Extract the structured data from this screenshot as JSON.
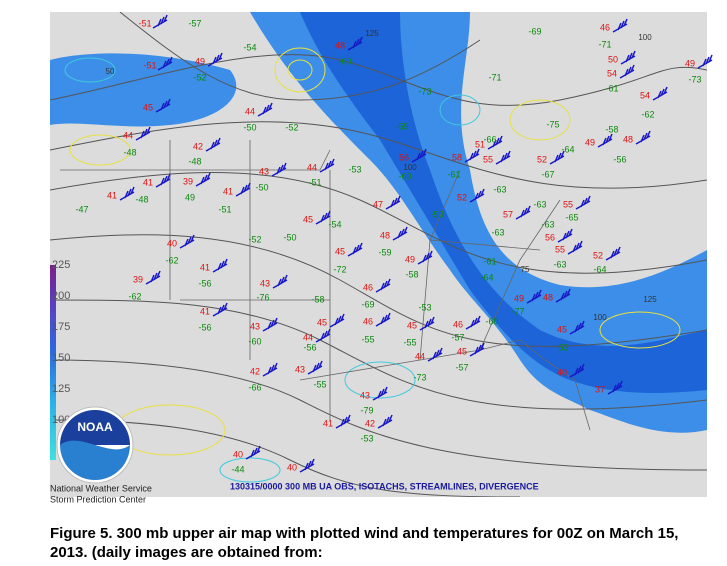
{
  "map": {
    "product_title": "130315/0000 300 MB UA OBS, ISOTACHS, STREAMLINES, DIVERGENCE",
    "agency": "National Weather Service",
    "center": "Storm Prediction Center",
    "logo_text": "NOAA",
    "scale_labels": [
      "225",
      "200",
      "175",
      "150",
      "125",
      "100"
    ],
    "isotach_labels": [
      "100",
      "125",
      "100",
      "75",
      "50",
      "100",
      "125"
    ],
    "temperatures": [
      "-51",
      "-51",
      "49",
      "45",
      "44",
      "42",
      "41",
      "39",
      "41",
      "41",
      "44",
      "43",
      "40",
      "41",
      "39",
      "43",
      "41",
      "43",
      "42",
      "40",
      "40",
      "44",
      "45",
      "45",
      "48",
      "47",
      "49",
      "46",
      "46",
      "45",
      "44",
      "43",
      "41",
      "42",
      "45",
      "44",
      "43",
      "46",
      "45",
      "52",
      "56",
      "58",
      "51",
      "55",
      "46",
      "50",
      "54",
      "54",
      "48",
      "49",
      "52",
      "55",
      "57",
      "56",
      "55",
      "52",
      "49",
      "48",
      "45",
      "40",
      "37",
      "49",
      "48"
    ],
    "dewpoints": [
      "-57",
      "-54",
      "-52",
      "-48",
      "-48",
      "-50",
      "-52",
      "-48",
      "49",
      "-47",
      "-51",
      "-50",
      "-51",
      "-53",
      "-54",
      "-50",
      "-52",
      "-62",
      "-56",
      "-62",
      "-76",
      "-58",
      "-56",
      "-60",
      "-56",
      "-55",
      "-66",
      "-44",
      "-79",
      "-53",
      "-55",
      "-69",
      "-72",
      "-59",
      "-55",
      "-58",
      "-53",
      "-57",
      "-57",
      "-73",
      "-60",
      "-77",
      "-53",
      "-64",
      "-61",
      "-63",
      "-53",
      "-61",
      "-63",
      "-59",
      "-60",
      "-60",
      "-73",
      "-66",
      "-71",
      "-69",
      "-75",
      "-64",
      "-63",
      "-67",
      "-65",
      "-63",
      "-64",
      "-71",
      "-61",
      "-58",
      "-56",
      "-62",
      "-73",
      "-63"
    ]
  },
  "caption": "Figure 5. 300 mb upper air map with plotted wind and temperatures for 00Z on March 15, 2013.  (daily images are obtained from:"
}
